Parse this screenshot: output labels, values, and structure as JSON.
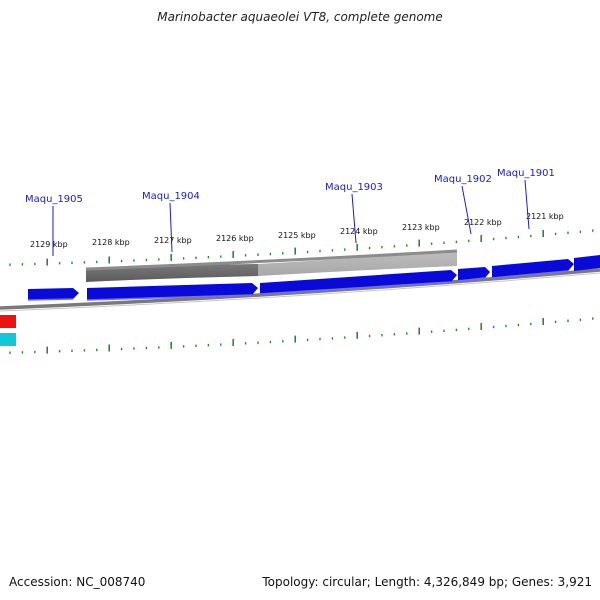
{
  "title": "Marinobacter aquaeolei VT8, complete genome",
  "footer": {
    "accession_text": "Accession: NC_008740",
    "summary_text": "Topology: circular; Length: 4,326,849 bp; Genes: 3,921"
  },
  "genome": {
    "scale_labels": [
      "2129 kbp",
      "2128 kbp",
      "2127 kbp",
      "2126 kbp",
      "2125 kbp",
      "2124 kbp",
      "2123 kbp",
      "2122 kbp",
      "2121 kbp"
    ],
    "genes": [
      {
        "label": "Maqu_1905",
        "strand": "forward"
      },
      {
        "label": "Maqu_1904",
        "strand": "forward"
      },
      {
        "label": "Maqu_1903",
        "strand": "forward"
      },
      {
        "label": "Maqu_1902",
        "strand": "forward"
      },
      {
        "label": "Maqu_1901",
        "strand": "forward"
      }
    ]
  },
  "colors": {
    "gene_forward": "#0a0ad8",
    "gene_label": "#1a1ad1",
    "tick_green": "#2a8a2a",
    "backbone_gray": "#8a8a8a",
    "legend_red": "#ee1111",
    "legend_cyan": "#10c8d8"
  }
}
